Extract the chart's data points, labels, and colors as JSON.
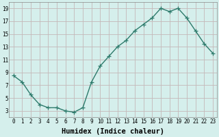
{
  "x": [
    0,
    1,
    2,
    3,
    4,
    5,
    6,
    7,
    8,
    9,
    10,
    11,
    12,
    13,
    14,
    15,
    16,
    17,
    18,
    19,
    20,
    21,
    22,
    23
  ],
  "y": [
    8.5,
    7.5,
    5.5,
    4.0,
    3.5,
    3.5,
    3.0,
    2.8,
    3.5,
    7.5,
    10.0,
    11.5,
    13.0,
    14.0,
    15.5,
    16.5,
    17.5,
    19.0,
    18.5,
    19.0,
    17.5,
    15.5,
    13.5,
    12.0
  ],
  "xlabel": "Humidex (Indice chaleur)",
  "ylim": [
    2,
    20
  ],
  "xlim": [
    -0.5,
    23.5
  ],
  "yticks": [
    3,
    5,
    7,
    9,
    11,
    13,
    15,
    17,
    19
  ],
  "xticks": [
    0,
    1,
    2,
    3,
    4,
    5,
    6,
    7,
    8,
    9,
    10,
    11,
    12,
    13,
    14,
    15,
    16,
    17,
    18,
    19,
    20,
    21,
    22,
    23
  ],
  "line_color": "#2d7a6b",
  "marker_color": "#2d7a6b",
  "bg_color": "#d5efec",
  "grid_color": "#c4b8b8",
  "tick_label_fontsize": 5.5,
  "xlabel_fontsize": 7.5,
  "marker": "+",
  "linewidth": 1.0,
  "marker_size": 4
}
